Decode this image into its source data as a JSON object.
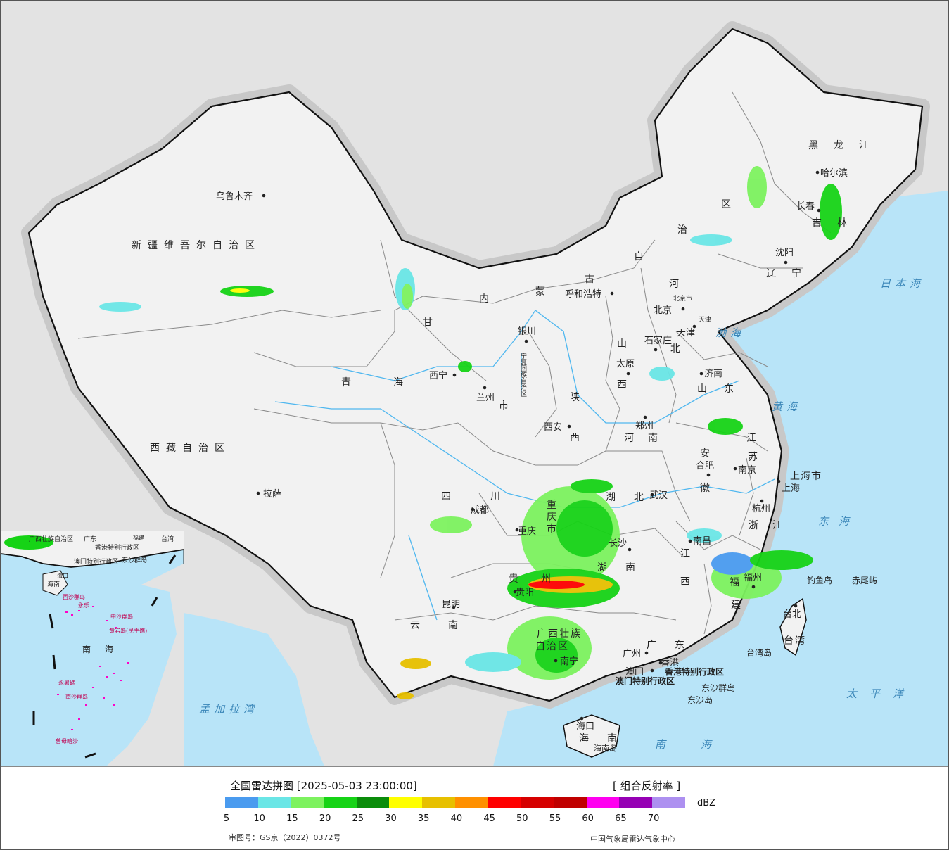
{
  "map": {
    "provinces": {
      "xinjiang": "新疆维吾尔自治区",
      "xizang": "西藏自治区",
      "qinghai": "青海",
      "gansu": "甘",
      "neimenggu_1": "内",
      "neimenggu_2": "蒙",
      "neimenggu_3": "古",
      "neimenggu_4": "自",
      "neimenggu_5": "治",
      "neimenggu_6": "区",
      "heilongjiang": "黑龙江",
      "jilin": "吉林",
      "liaoning": "辽宁",
      "hebei_1": "河",
      "hebei_2": "北",
      "shanxi_1": "山",
      "shanxi_2": "西",
      "shaanxi_1": "陕",
      "shaanxi_2": "西",
      "shandong": "山东",
      "henan": "河南",
      "jiangsu_1": "江",
      "jiangsu_2": "苏",
      "anhui_1": "安",
      "anhui_2": "徽",
      "hubei": "湖北",
      "sichuan_1": "四",
      "sichuan_2": "川",
      "chongqing_1": "重",
      "chongqing_2": "庆",
      "chongqing_3": "市",
      "hunan_1": "湖",
      "hunan_2": "南",
      "jiangxi_1": "江",
      "jiangxi_2": "西",
      "zhejiang": "浙江",
      "fujian_1": "福",
      "fujian_2": "建",
      "guizhou_1": "贵",
      "guizhou_2": "州",
      "yunnan": "云南",
      "guangxi_1": "广西壮族",
      "guangxi_2": "自治区",
      "guangdong": "广东",
      "hainan_1": "海",
      "hainan_2": "南",
      "taiwan": "台湾",
      "shanghai": "上海市",
      "ningxia": "宁夏回族自治区",
      "gansu_city": "市",
      "hk_sar": "香港特别行政区",
      "macau_sar": "澳门特别行政区"
    },
    "cities": {
      "urumqi": "乌鲁木齐",
      "lhasa": "拉萨",
      "xining": "西宁",
      "lanzhou": "兰州",
      "yinchuan": "银川",
      "hohhot": "呼和浩特",
      "beijing": "北京",
      "beijing_shi": "北京市",
      "tianjin": "天津",
      "tianjin_shi": "天津",
      "shijiazhuang": "石家庄",
      "taiyuan": "太原",
      "jinan": "济南",
      "zhengzhou": "郑州",
      "xian": "西安",
      "nanjing": "南京",
      "hefei": "合肥",
      "shanghai": "上海",
      "hangzhou": "杭州",
      "wuhan": "武汉",
      "chengdu": "成都",
      "chongqing": "重庆",
      "changsha": "长沙",
      "nanchang": "南昌",
      "fuzhou": "福州",
      "guiyang": "贵阳",
      "kunming": "昆明",
      "nanning": "南宁",
      "guangzhou": "广州",
      "hongkong": "香港",
      "macau": "澳门",
      "haikou": "海口",
      "taipei": "台北",
      "harbin": "哈尔滨",
      "changchun": "长春",
      "shenyang": "沈阳",
      "diaoyu": "钓鱼岛",
      "chiwei": "赤尾屿",
      "dongsha": "东沙群岛",
      "dongsha_dao": "东沙岛",
      "taiwan_dao": "台湾岛",
      "hainan_dao": "海南岛"
    },
    "seas": {
      "japan_sea": "日本海",
      "bohai": "渤海",
      "huanghai": "黄海",
      "donghai": "东海",
      "taipingyang": "太平洋",
      "nanhai": "南海",
      "bengal": "孟加拉湾"
    },
    "inset": {
      "nanhai": "南海",
      "guangxi": "广西壮族自治区",
      "guangdong": "广东",
      "fujian": "福建",
      "taiwan": "台湾",
      "hk": "香港特别行政区",
      "macau": "澳门特别行政区",
      "dongsha": "东沙群岛",
      "hainan": "海南",
      "haikou": "海口",
      "xisha": "西沙群岛",
      "yongle": "永乐",
      "zhongsha": "中沙群岛",
      "huangyan": "黄岩岛(民主礁)",
      "yongshu": "永暑礁",
      "nansha": "南沙群岛",
      "zengmu": "曾母暗沙"
    },
    "colors": {
      "land": "#f2f2f2",
      "foreign_land": "#e3e3e3",
      "water": "#b8e4f8",
      "border": "#111111",
      "province_border": "#8a8a8a",
      "river": "#4fb7ef"
    }
  },
  "legend": {
    "title": "全国雷达拼图 [2025-05-03 23:00:00]",
    "product": "[ 组合反射率 ]",
    "unit": "dBZ",
    "ticks": [
      "5",
      "10",
      "15",
      "20",
      "25",
      "30",
      "35",
      "40",
      "45",
      "50",
      "55",
      "60",
      "65",
      "70"
    ],
    "colors": [
      "#4a9bef",
      "#6ae6e6",
      "#7df25f",
      "#16d316",
      "#0a8c0a",
      "#ffff00",
      "#e7c000",
      "#ff9000",
      "#ff0000",
      "#d60000",
      "#c00000",
      "#ff00f0",
      "#9600b4",
      "#ad90f0"
    ],
    "review_no": "审图号：GS京（2022）0372号",
    "credit": "中国气象局雷达气象中心"
  }
}
